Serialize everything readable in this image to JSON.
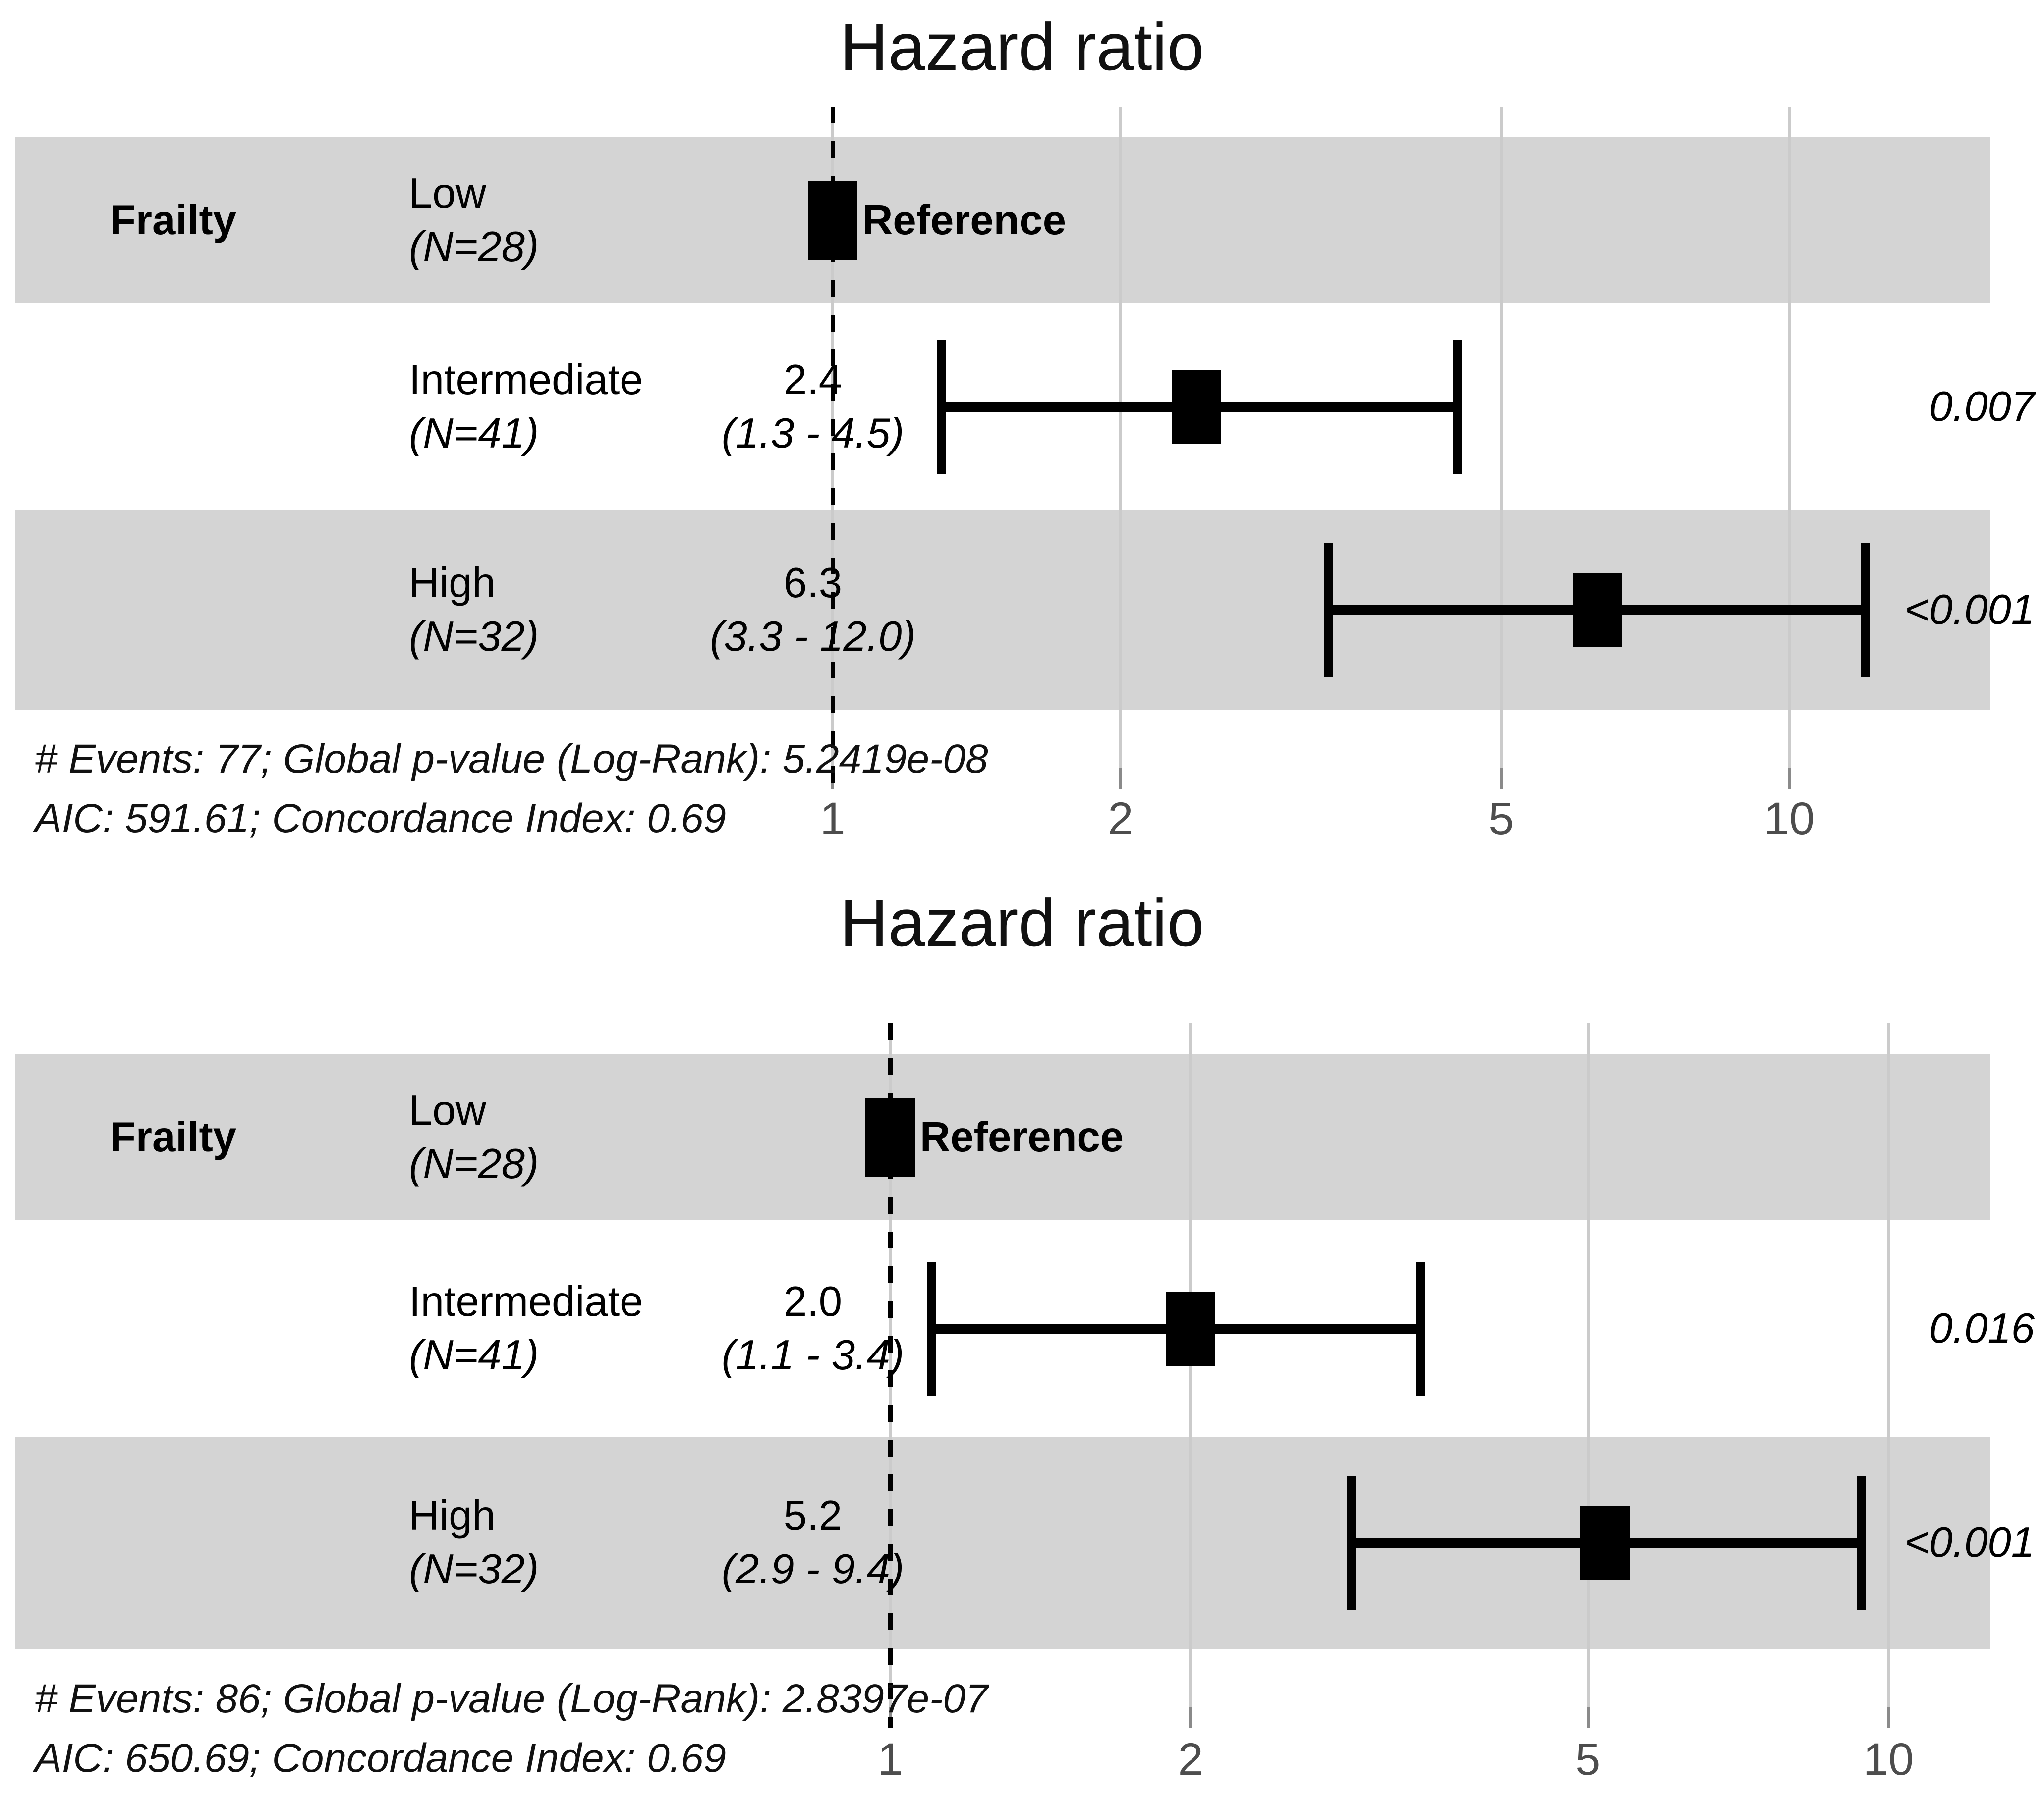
{
  "chart_data": [
    {
      "type": "forest",
      "title": "Hazard ratio",
      "group_label": "Frailty",
      "x_scale": "log10",
      "x_ticks": [
        1,
        2,
        5,
        10
      ],
      "x_range": [
        0.9,
        13
      ],
      "reference_line": 1,
      "grid": true,
      "rows": [
        {
          "level": "Low",
          "n": 28,
          "n_label": "(N=28)",
          "reference": true,
          "estimate": 1.0,
          "estimate_label": "Reference"
        },
        {
          "level": "Intermediate",
          "n": 41,
          "n_label": "(N=41)",
          "reference": false,
          "estimate": 2.4,
          "ci_low": 1.3,
          "ci_high": 4.5,
          "estimate_label": "2.4",
          "ci_label": "(1.3 - 4.5)",
          "p_label": "0.007"
        },
        {
          "level": "High",
          "n": 32,
          "n_label": "(N=32)",
          "reference": false,
          "estimate": 6.3,
          "ci_low": 3.3,
          "ci_high": 12.0,
          "estimate_label": "6.3",
          "ci_label": "(3.3 - 12.0)",
          "p_label": "<0.001"
        }
      ],
      "footnote_line1": "# Events: 77; Global p-value (Log-Rank): 5.2419e-08",
      "footnote_line2": "AIC: 591.61; Concordance Index: 0.69"
    },
    {
      "type": "forest",
      "title": "Hazard ratio",
      "group_label": "Frailty",
      "x_scale": "log10",
      "x_ticks": [
        1,
        2,
        5,
        10
      ],
      "x_range": [
        0.9,
        13
      ],
      "reference_line": 1,
      "grid": true,
      "rows": [
        {
          "level": "Low",
          "n": 28,
          "n_label": "(N=28)",
          "reference": true,
          "estimate": 1.0,
          "estimate_label": "Reference"
        },
        {
          "level": "Intermediate",
          "n": 41,
          "n_label": "(N=41)",
          "reference": false,
          "estimate": 2.0,
          "ci_low": 1.1,
          "ci_high": 3.4,
          "estimate_label": "2.0",
          "ci_label": "(1.1 - 3.4)",
          "p_label": "0.016"
        },
        {
          "level": "High",
          "n": 32,
          "n_label": "(N=32)",
          "reference": false,
          "estimate": 5.2,
          "ci_low": 2.9,
          "ci_high": 9.4,
          "estimate_label": "5.2",
          "ci_label": "(2.9 - 9.4)",
          "p_label": "<0.001"
        }
      ],
      "footnote_line1": "# Events: 86; Global p-value (Log-Rank): 2.8397e-07",
      "footnote_line2": "AIC: 650.69; Concordance Index: 0.69"
    }
  ],
  "colors": {
    "stripe": "#d4d4d4",
    "gridline": "#cbcbcb",
    "tick": "#8a8a8a",
    "axis_label": "#4d4d4d",
    "mark": "#000000"
  }
}
